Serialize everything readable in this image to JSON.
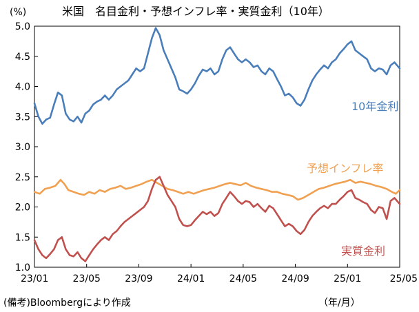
{
  "chart_data": {
    "type": "line",
    "title": "米国　名目金利・予想インフレ率・実質金利（10年）",
    "ylabel": "(%)",
    "xlabel": "（年/月）",
    "source_note": "(備考)Bloombergにより作成",
    "ylim": [
      1.0,
      5.0
    ],
    "yticks": [
      "1.0",
      "1.5",
      "2.0",
      "2.5",
      "3.0",
      "3.5",
      "4.0",
      "4.5",
      "5.0"
    ],
    "xlim": [
      0,
      28
    ],
    "xticks": [
      {
        "label": "23/01",
        "x": 0
      },
      {
        "label": "23/05",
        "x": 4
      },
      {
        "label": "23/09",
        "x": 8
      },
      {
        "label": "24/01",
        "x": 12
      },
      {
        "label": "24/05",
        "x": 16
      },
      {
        "label": "24/09",
        "x": 20
      },
      {
        "label": "25/01",
        "x": 24
      },
      {
        "label": "25/05",
        "x": 28
      }
    ],
    "grid": false,
    "series": [
      {
        "name": "10年金利",
        "color": "#4a7ebb",
        "points": [
          [
            0,
            3.72
          ],
          [
            0.3,
            3.5
          ],
          [
            0.6,
            3.38
          ],
          [
            0.9,
            3.45
          ],
          [
            1.2,
            3.48
          ],
          [
            1.5,
            3.7
          ],
          [
            1.8,
            3.9
          ],
          [
            2.1,
            3.85
          ],
          [
            2.4,
            3.55
          ],
          [
            2.7,
            3.45
          ],
          [
            3.0,
            3.42
          ],
          [
            3.3,
            3.5
          ],
          [
            3.6,
            3.4
          ],
          [
            3.9,
            3.55
          ],
          [
            4.2,
            3.6
          ],
          [
            4.5,
            3.7
          ],
          [
            4.8,
            3.75
          ],
          [
            5.1,
            3.78
          ],
          [
            5.4,
            3.85
          ],
          [
            5.7,
            3.78
          ],
          [
            6.0,
            3.85
          ],
          [
            6.3,
            3.95
          ],
          [
            6.6,
            4.0
          ],
          [
            6.9,
            4.05
          ],
          [
            7.2,
            4.1
          ],
          [
            7.5,
            4.2
          ],
          [
            7.8,
            4.3
          ],
          [
            8.1,
            4.25
          ],
          [
            8.4,
            4.3
          ],
          [
            8.7,
            4.55
          ],
          [
            9.0,
            4.8
          ],
          [
            9.3,
            4.97
          ],
          [
            9.6,
            4.85
          ],
          [
            9.9,
            4.6
          ],
          [
            10.2,
            4.45
          ],
          [
            10.5,
            4.3
          ],
          [
            10.8,
            4.15
          ],
          [
            11.1,
            3.95
          ],
          [
            11.4,
            3.92
          ],
          [
            11.7,
            3.88
          ],
          [
            12.0,
            3.95
          ],
          [
            12.3,
            4.05
          ],
          [
            12.6,
            4.18
          ],
          [
            12.9,
            4.28
          ],
          [
            13.2,
            4.25
          ],
          [
            13.5,
            4.3
          ],
          [
            13.8,
            4.2
          ],
          [
            14.1,
            4.25
          ],
          [
            14.4,
            4.45
          ],
          [
            14.7,
            4.6
          ],
          [
            15.0,
            4.65
          ],
          [
            15.3,
            4.55
          ],
          [
            15.6,
            4.45
          ],
          [
            15.9,
            4.4
          ],
          [
            16.2,
            4.45
          ],
          [
            16.5,
            4.4
          ],
          [
            16.8,
            4.32
          ],
          [
            17.1,
            4.35
          ],
          [
            17.4,
            4.25
          ],
          [
            17.7,
            4.2
          ],
          [
            18.0,
            4.3
          ],
          [
            18.3,
            4.25
          ],
          [
            18.6,
            4.12
          ],
          [
            18.9,
            4.0
          ],
          [
            19.2,
            3.85
          ],
          [
            19.5,
            3.88
          ],
          [
            19.8,
            3.82
          ],
          [
            20.1,
            3.72
          ],
          [
            20.4,
            3.68
          ],
          [
            20.7,
            3.78
          ],
          [
            21.0,
            3.95
          ],
          [
            21.3,
            4.1
          ],
          [
            21.6,
            4.2
          ],
          [
            21.9,
            4.28
          ],
          [
            22.2,
            4.35
          ],
          [
            22.5,
            4.3
          ],
          [
            22.8,
            4.4
          ],
          [
            23.1,
            4.45
          ],
          [
            23.4,
            4.55
          ],
          [
            23.7,
            4.62
          ],
          [
            24.0,
            4.7
          ],
          [
            24.3,
            4.75
          ],
          [
            24.6,
            4.6
          ],
          [
            24.9,
            4.55
          ],
          [
            25.2,
            4.5
          ],
          [
            25.5,
            4.45
          ],
          [
            25.8,
            4.3
          ],
          [
            26.1,
            4.25
          ],
          [
            26.4,
            4.3
          ],
          [
            26.7,
            4.28
          ],
          [
            27.0,
            4.2
          ],
          [
            27.3,
            4.35
          ],
          [
            27.6,
            4.4
          ],
          [
            28.0,
            4.3
          ]
        ]
      },
      {
        "name": "予想インフレ率",
        "color": "#f0a050",
        "points": [
          [
            0,
            2.25
          ],
          [
            0.4,
            2.22
          ],
          [
            0.8,
            2.3
          ],
          [
            1.2,
            2.32
          ],
          [
            1.6,
            2.35
          ],
          [
            2.0,
            2.45
          ],
          [
            2.3,
            2.38
          ],
          [
            2.6,
            2.28
          ],
          [
            3.0,
            2.25
          ],
          [
            3.4,
            2.22
          ],
          [
            3.8,
            2.2
          ],
          [
            4.2,
            2.25
          ],
          [
            4.6,
            2.22
          ],
          [
            5.0,
            2.28
          ],
          [
            5.4,
            2.25
          ],
          [
            5.8,
            2.3
          ],
          [
            6.2,
            2.32
          ],
          [
            6.6,
            2.35
          ],
          [
            7.0,
            2.3
          ],
          [
            7.4,
            2.32
          ],
          [
            7.8,
            2.35
          ],
          [
            8.2,
            2.38
          ],
          [
            8.6,
            2.42
          ],
          [
            9.0,
            2.45
          ],
          [
            9.4,
            2.4
          ],
          [
            9.8,
            2.35
          ],
          [
            10.2,
            2.3
          ],
          [
            10.6,
            2.28
          ],
          [
            11.0,
            2.25
          ],
          [
            11.4,
            2.22
          ],
          [
            11.8,
            2.25
          ],
          [
            12.2,
            2.22
          ],
          [
            12.6,
            2.25
          ],
          [
            13.0,
            2.28
          ],
          [
            13.4,
            2.3
          ],
          [
            13.8,
            2.32
          ],
          [
            14.2,
            2.35
          ],
          [
            14.6,
            2.38
          ],
          [
            15.0,
            2.4
          ],
          [
            15.4,
            2.38
          ],
          [
            15.8,
            2.36
          ],
          [
            16.2,
            2.4
          ],
          [
            16.6,
            2.35
          ],
          [
            17.0,
            2.32
          ],
          [
            17.4,
            2.3
          ],
          [
            17.8,
            2.28
          ],
          [
            18.2,
            2.25
          ],
          [
            18.6,
            2.25
          ],
          [
            19.0,
            2.22
          ],
          [
            19.4,
            2.2
          ],
          [
            19.8,
            2.18
          ],
          [
            20.2,
            2.12
          ],
          [
            20.6,
            2.15
          ],
          [
            21.0,
            2.2
          ],
          [
            21.4,
            2.25
          ],
          [
            21.8,
            2.3
          ],
          [
            22.2,
            2.32
          ],
          [
            22.6,
            2.35
          ],
          [
            23.0,
            2.38
          ],
          [
            23.4,
            2.4
          ],
          [
            23.8,
            2.42
          ],
          [
            24.2,
            2.45
          ],
          [
            24.6,
            2.4
          ],
          [
            25.0,
            2.42
          ],
          [
            25.4,
            2.4
          ],
          [
            25.8,
            2.38
          ],
          [
            26.2,
            2.35
          ],
          [
            26.6,
            2.33
          ],
          [
            27.0,
            2.3
          ],
          [
            27.4,
            2.25
          ],
          [
            27.7,
            2.22
          ],
          [
            28.0,
            2.28
          ]
        ]
      },
      {
        "name": "実質金利",
        "color": "#c0504d",
        "points": [
          [
            0,
            1.45
          ],
          [
            0.3,
            1.3
          ],
          [
            0.6,
            1.2
          ],
          [
            0.9,
            1.15
          ],
          [
            1.2,
            1.22
          ],
          [
            1.5,
            1.3
          ],
          [
            1.8,
            1.45
          ],
          [
            2.1,
            1.5
          ],
          [
            2.4,
            1.3
          ],
          [
            2.7,
            1.2
          ],
          [
            3.0,
            1.18
          ],
          [
            3.3,
            1.25
          ],
          [
            3.6,
            1.15
          ],
          [
            3.9,
            1.1
          ],
          [
            4.2,
            1.2
          ],
          [
            4.5,
            1.3
          ],
          [
            4.8,
            1.38
          ],
          [
            5.1,
            1.45
          ],
          [
            5.4,
            1.5
          ],
          [
            5.7,
            1.45
          ],
          [
            6.0,
            1.55
          ],
          [
            6.3,
            1.6
          ],
          [
            6.6,
            1.68
          ],
          [
            6.9,
            1.75
          ],
          [
            7.2,
            1.8
          ],
          [
            7.5,
            1.85
          ],
          [
            7.8,
            1.9
          ],
          [
            8.1,
            1.95
          ],
          [
            8.4,
            2.0
          ],
          [
            8.7,
            2.1
          ],
          [
            9.0,
            2.3
          ],
          [
            9.3,
            2.45
          ],
          [
            9.6,
            2.5
          ],
          [
            9.9,
            2.35
          ],
          [
            10.2,
            2.2
          ],
          [
            10.5,
            2.1
          ],
          [
            10.8,
            2.0
          ],
          [
            11.1,
            1.8
          ],
          [
            11.4,
            1.7
          ],
          [
            11.7,
            1.68
          ],
          [
            12.0,
            1.7
          ],
          [
            12.3,
            1.78
          ],
          [
            12.6,
            1.85
          ],
          [
            12.9,
            1.92
          ],
          [
            13.2,
            1.88
          ],
          [
            13.5,
            1.92
          ],
          [
            13.8,
            1.85
          ],
          [
            14.1,
            1.9
          ],
          [
            14.4,
            2.05
          ],
          [
            14.7,
            2.15
          ],
          [
            15.0,
            2.25
          ],
          [
            15.3,
            2.18
          ],
          [
            15.6,
            2.1
          ],
          [
            15.9,
            2.05
          ],
          [
            16.2,
            2.1
          ],
          [
            16.5,
            2.08
          ],
          [
            16.8,
            2.0
          ],
          [
            17.1,
            2.05
          ],
          [
            17.4,
            1.98
          ],
          [
            17.7,
            1.92
          ],
          [
            18.0,
            2.02
          ],
          [
            18.3,
            1.98
          ],
          [
            18.6,
            1.88
          ],
          [
            18.9,
            1.78
          ],
          [
            19.2,
            1.68
          ],
          [
            19.5,
            1.72
          ],
          [
            19.8,
            1.68
          ],
          [
            20.1,
            1.6
          ],
          [
            20.4,
            1.55
          ],
          [
            20.7,
            1.62
          ],
          [
            21.0,
            1.75
          ],
          [
            21.3,
            1.85
          ],
          [
            21.6,
            1.92
          ],
          [
            21.9,
            1.98
          ],
          [
            22.2,
            2.02
          ],
          [
            22.5,
            1.98
          ],
          [
            22.8,
            2.05
          ],
          [
            23.1,
            2.05
          ],
          [
            23.4,
            2.12
          ],
          [
            23.7,
            2.18
          ],
          [
            24.0,
            2.25
          ],
          [
            24.3,
            2.28
          ],
          [
            24.6,
            2.15
          ],
          [
            24.9,
            2.12
          ],
          [
            25.2,
            2.08
          ],
          [
            25.5,
            2.05
          ],
          [
            25.8,
            1.95
          ],
          [
            26.1,
            1.9
          ],
          [
            26.4,
            2.0
          ],
          [
            26.7,
            1.98
          ],
          [
            27.0,
            1.8
          ],
          [
            27.3,
            2.1
          ],
          [
            27.6,
            2.15
          ],
          [
            28.0,
            2.05
          ]
        ]
      }
    ]
  }
}
